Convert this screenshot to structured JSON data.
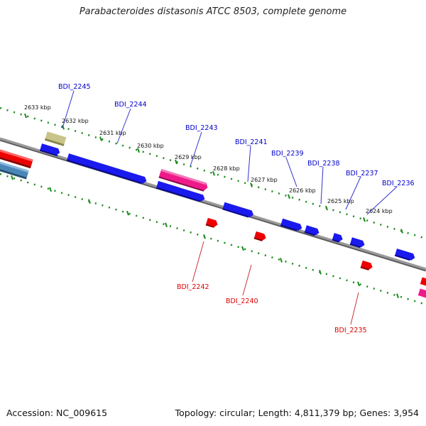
{
  "title": "Parabacteroides distasonis ATCC 8503, complete genome",
  "footer": {
    "accession": "Accession: NC_009615",
    "topology": "Topology: circular; Length: 4,811,379 bp; Genes: 3,954"
  },
  "colors": {
    "forward_label": "#0000cc",
    "reverse_label": "#dd0000",
    "blue_gene": "#1a1aee",
    "red_gene": "#ee0000",
    "pink_gene": "#ee1a8a",
    "steel_gene": "#4a86b8",
    "olive_gene": "#b8b46a",
    "tick_marks": "#1a8a1a",
    "backbone": "#808080"
  },
  "scale_ticks": [
    "2633 kbp",
    "2632 kbp",
    "2631 kbp",
    "2630 kbp",
    "2629 kbp",
    "2628 kbp",
    "2627 kbp",
    "2626 kbp",
    "2625 kbp",
    "2624 kbp"
  ],
  "forward_genes": [
    "BDI_2245",
    "BDI_2244",
    "BDI_2243",
    "BDI_2241",
    "BDI_2239",
    "BDI_2238",
    "BDI_2237",
    "BDI_2236"
  ],
  "reverse_genes": [
    "BDI_2242",
    "BDI_2240",
    "BDI_2235"
  ]
}
